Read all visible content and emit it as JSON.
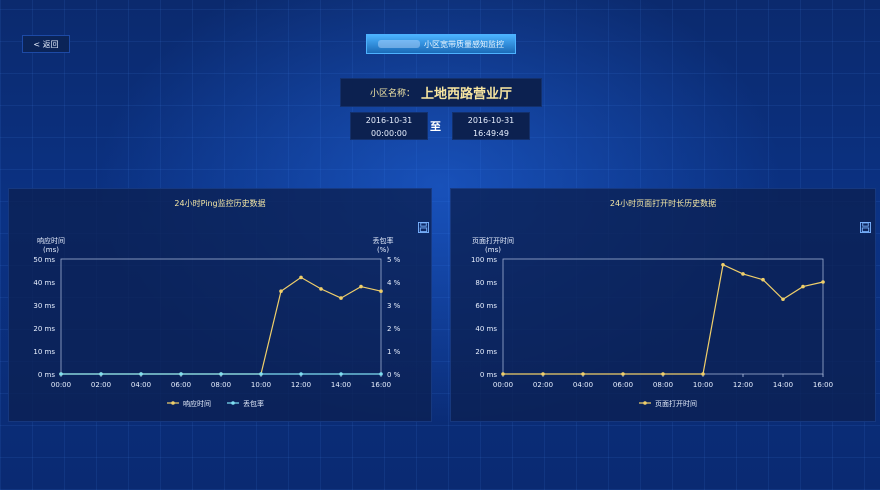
{
  "header": {
    "back_label": "< 返回",
    "title": "小区宽带质量感知监控",
    "community_label": "小区名称：",
    "community_name": "上地西路营业厅",
    "start_date": "2016-10-31",
    "start_time": "00:00:00",
    "to_label": "至",
    "end_date": "2016-10-31",
    "end_time": "16:49:49"
  },
  "colors": {
    "series_yellow": "#f0cf6a",
    "series_cyan": "#7fdff2",
    "axis": "#b8c8e8"
  },
  "ping_panel": {
    "title": "24小时Ping监控历史数据",
    "save_icon": "save-icon",
    "chart_data": {
      "type": "line",
      "x": [
        "00:00",
        "01:00",
        "02:00",
        "03:00",
        "04:00",
        "05:00",
        "06:00",
        "07:00",
        "08:00",
        "09:00",
        "10:00",
        "11:00",
        "12:00",
        "13:00",
        "14:00",
        "15:00",
        "16:00"
      ],
      "x_ticks": [
        "00:00",
        "02:00",
        "04:00",
        "06:00",
        "08:00",
        "10:00",
        "12:00",
        "14:00",
        "16:00"
      ],
      "ylabel_left": "响应时间\n(ms)",
      "ylabel_left_line1": "响应时间",
      "ylabel_left_line2": "(ms)",
      "ylabel_right_line1": "丢包率",
      "ylabel_right_line2": "(%)",
      "ylim_left": [
        0,
        50
      ],
      "ylim_right": [
        0,
        5
      ],
      "y_ticks_left": [
        "0 ms",
        "10 ms",
        "20 ms",
        "30 ms",
        "40 ms",
        "50 ms"
      ],
      "y_ticks_right": [
        "0 %",
        "1 %",
        "2 %",
        "3 %",
        "4 %",
        "5 %"
      ],
      "series": [
        {
          "name": "响应时间",
          "axis": "left",
          "values": [
            0,
            0,
            0,
            0,
            0,
            0,
            0,
            0,
            0,
            0,
            0,
            36,
            42,
            37,
            33,
            38,
            36
          ]
        },
        {
          "name": "丢包率",
          "axis": "right",
          "values": [
            0,
            0,
            0,
            0,
            0,
            0,
            0,
            0,
            0,
            0,
            0,
            0,
            0,
            0,
            0,
            0,
            0
          ]
        }
      ],
      "legend": [
        "响应时间",
        "丢包率"
      ],
      "legend_position": "bottom"
    }
  },
  "page_panel": {
    "title": "24小时页面打开时长历史数据",
    "save_icon": "save-icon",
    "chart_data": {
      "type": "line",
      "x": [
        "00:00",
        "01:00",
        "02:00",
        "03:00",
        "04:00",
        "05:00",
        "06:00",
        "07:00",
        "08:00",
        "09:00",
        "10:00",
        "11:00",
        "12:00",
        "13:00",
        "14:00",
        "15:00",
        "16:00"
      ],
      "x_ticks": [
        "00:00",
        "02:00",
        "04:00",
        "06:00",
        "08:00",
        "10:00",
        "12:00",
        "14:00",
        "16:00"
      ],
      "ylabel_left_line1": "页面打开时间",
      "ylabel_left_line2": "(ms)",
      "ylim_left": [
        0,
        100
      ],
      "y_ticks_left": [
        "0 ms",
        "20 ms",
        "40 ms",
        "60 ms",
        "80 ms",
        "100 ms"
      ],
      "series": [
        {
          "name": "页面打开时间",
          "axis": "left",
          "values": [
            0,
            0,
            0,
            0,
            0,
            0,
            0,
            0,
            0,
            0,
            0,
            95,
            87,
            82,
            65,
            76,
            80
          ]
        }
      ],
      "legend": [
        "页面打开时间"
      ],
      "legend_position": "bottom"
    }
  }
}
